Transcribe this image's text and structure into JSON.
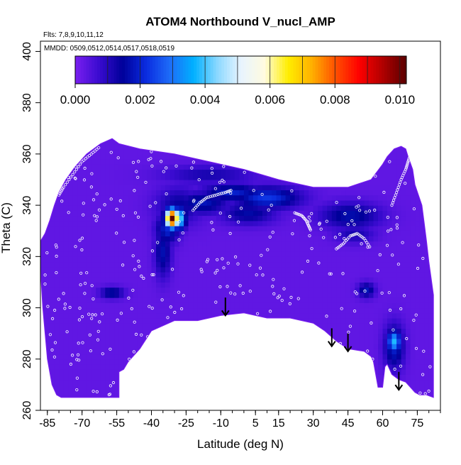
{
  "chart_data": {
    "type": "heatmap",
    "title": "ATOM4 Northbound V_nucl_AMP",
    "flights_note": "Flts: 7,8,9,10,11,12",
    "dates_note": "MMDD: 0509,0512,0514,0517,0518,0519",
    "xlabel": "Latitude (deg N)",
    "ylabel": "Theta (C)",
    "xlim": [
      -88,
      85
    ],
    "ylim": [
      260,
      404
    ],
    "x_ticks": [
      -85,
      -70,
      -55,
      -40,
      -25,
      -10,
      5,
      15,
      30,
      45,
      60,
      75
    ],
    "x_tick_labels": [
      "-85",
      "-70",
      "-55",
      "-40",
      "-25",
      "-10",
      "5",
      "15",
      "30",
      "45",
      "60",
      "75"
    ],
    "y_ticks": [
      260,
      280,
      300,
      320,
      340,
      360,
      380,
      400
    ],
    "y_tick_labels": [
      "260",
      "280",
      "300",
      "320",
      "340",
      "360",
      "380",
      "400"
    ],
    "colorbar": {
      "min": 0.0,
      "max": 0.0102,
      "tick_values": [
        0.0,
        0.002,
        0.004,
        0.006,
        0.008,
        0.01
      ],
      "tick_labels": [
        "0.000",
        "0.002",
        "0.004",
        "0.006",
        "0.008",
        "0.010"
      ],
      "segment_boundaries": [
        0.0,
        0.001,
        0.002,
        0.003,
        0.004,
        0.005,
        0.006,
        0.007,
        0.008,
        0.009,
        0.01
      ],
      "colors": [
        "#7a1ff0",
        "#3a0bd0",
        "#00009a",
        "#0a2ce0",
        "#1e6cf8",
        "#00b0ff",
        "#8ad8ff",
        "#e8f4ff",
        "#fffbe0",
        "#ffee00",
        "#ffb000",
        "#ff5000",
        "#ff0000",
        "#b00000",
        "#5a0000"
      ]
    },
    "background_value": 0.0003,
    "outline": [
      [
        -88,
        326
      ],
      [
        -86,
        329
      ],
      [
        -84,
        334
      ],
      [
        -82,
        340
      ],
      [
        -80,
        345
      ],
      [
        -77,
        350
      ],
      [
        -73,
        355
      ],
      [
        -68,
        360
      ],
      [
        -62,
        364
      ],
      [
        -57,
        366
      ],
      [
        -54,
        364
      ],
      [
        -45,
        362
      ],
      [
        -30,
        360
      ],
      [
        -15,
        357
      ],
      [
        0,
        354
      ],
      [
        15,
        350
      ],
      [
        30,
        347
      ],
      [
        45,
        347
      ],
      [
        55,
        350
      ],
      [
        60,
        356
      ],
      [
        62,
        359
      ],
      [
        65,
        362
      ],
      [
        68,
        363
      ],
      [
        70,
        362
      ],
      [
        71,
        359
      ],
      [
        73,
        354
      ],
      [
        74,
        348
      ],
      [
        77,
        340
      ],
      [
        78,
        333
      ],
      [
        79,
        326
      ],
      [
        80,
        318
      ],
      [
        82,
        305
      ],
      [
        82,
        280
      ],
      [
        82,
        265
      ],
      [
        79,
        266
      ],
      [
        76,
        266
      ],
      [
        74,
        267
      ],
      [
        70,
        271
      ],
      [
        67,
        272
      ],
      [
        64,
        274
      ],
      [
        62,
        278
      ],
      [
        61,
        277
      ],
      [
        60,
        269
      ],
      [
        58,
        269
      ],
      [
        56,
        279
      ],
      [
        55,
        281
      ],
      [
        52,
        283
      ],
      [
        45,
        284
      ],
      [
        40,
        287
      ],
      [
        35,
        291
      ],
      [
        30,
        294
      ],
      [
        20,
        296
      ],
      [
        10,
        296
      ],
      [
        0,
        298
      ],
      [
        -10,
        297
      ],
      [
        -20,
        295
      ],
      [
        -30,
        295
      ],
      [
        -40,
        291
      ],
      [
        -45,
        284
      ],
      [
        -50,
        279
      ],
      [
        -52,
        276
      ],
      [
        -54,
        275
      ],
      [
        -54,
        265
      ],
      [
        -79,
        265
      ],
      [
        -81,
        266
      ],
      [
        -83,
        270
      ],
      [
        -85,
        280
      ],
      [
        -87,
        300
      ],
      [
        -88,
        315
      ]
    ],
    "features": [
      {
        "lat": -31,
        "theta": 335,
        "dlat": 2.0,
        "dtheta": 2.5,
        "value": 0.0102
      },
      {
        "lat": -28,
        "theta": 335,
        "dlat": 2.0,
        "dtheta": 3.0,
        "value": 0.0044
      },
      {
        "lat": -33,
        "theta": 331,
        "dlat": 3.5,
        "dtheta": 4.0,
        "value": 0.0021
      },
      {
        "lat": -35,
        "theta": 322,
        "dlat": 2.5,
        "dtheta": 7.0,
        "value": 0.0017
      },
      {
        "lat": -28,
        "theta": 340,
        "dlat": 7.0,
        "dtheta": 5.0,
        "value": 0.0014
      },
      {
        "lat": -18,
        "theta": 341,
        "dlat": 8.0,
        "dtheta": 3.0,
        "value": 0.0018
      },
      {
        "lat": -5,
        "theta": 345,
        "dlat": 9.0,
        "dtheta": 2.5,
        "value": 0.002
      },
      {
        "lat": 10,
        "theta": 343,
        "dlat": 10.0,
        "dtheta": 3.0,
        "value": 0.0023
      },
      {
        "lat": 2,
        "theta": 337,
        "dlat": 8.0,
        "dtheta": 3.0,
        "value": 0.0016
      },
      {
        "lat": -15,
        "theta": 352,
        "dlat": 14.0,
        "dtheta": 2.5,
        "value": 0.0012
      },
      {
        "lat": 46,
        "theta": 336,
        "dlat": 9.0,
        "dtheta": 3.5,
        "value": 0.0017
      },
      {
        "lat": 48,
        "theta": 329,
        "dlat": 6.0,
        "dtheta": 2.5,
        "value": 0.0012
      },
      {
        "lat": 53,
        "theta": 307,
        "dlat": 2.5,
        "dtheta": 2.0,
        "value": 0.0018
      },
      {
        "lat": 65,
        "theta": 287,
        "dlat": 2.0,
        "dtheta": 3.0,
        "value": 0.0038
      },
      {
        "lat": 65,
        "theta": 285,
        "dlat": 3.0,
        "dtheta": 6.0,
        "value": 0.002
      },
      {
        "lat": -57,
        "theta": 306,
        "dlat": 3.5,
        "dtheta": 1.5,
        "value": 0.0018
      }
    ],
    "arrows": [
      {
        "lat": -8,
        "theta_top": 304,
        "theta_tip": 297
      },
      {
        "lat": 38,
        "theta_top": 292,
        "theta_tip": 285
      },
      {
        "lat": 45,
        "theta_top": 290,
        "theta_tip": 283
      },
      {
        "lat": 67,
        "theta_top": 275,
        "theta_tip": 268
      }
    ],
    "sample_tracks": [
      {
        "name": "ascent-south",
        "points": [
          [
            -80,
            344
          ],
          [
            -78,
            347
          ],
          [
            -74,
            352
          ],
          [
            -70,
            357
          ],
          [
            -66,
            360
          ],
          [
            -62,
            363
          ]
        ]
      },
      {
        "name": "hump-center",
        "points": [
          [
            -22,
            338
          ],
          [
            -19,
            341
          ],
          [
            -16,
            343
          ],
          [
            -12,
            344
          ],
          [
            -8,
            345
          ],
          [
            -5,
            346
          ]
        ]
      },
      {
        "name": "mid-lat-north",
        "points": [
          [
            22,
            337
          ],
          [
            25,
            336
          ],
          [
            27,
            334
          ],
          [
            28,
            332
          ],
          [
            29,
            330
          ]
        ]
      },
      {
        "name": "subtropic-north",
        "points": [
          [
            40,
            323
          ],
          [
            43,
            325
          ],
          [
            46,
            328
          ],
          [
            49,
            329
          ],
          [
            52,
            327
          ],
          [
            55,
            323
          ]
        ]
      },
      {
        "name": "arctic-ascent",
        "points": [
          [
            64,
            340
          ],
          [
            66,
            345
          ],
          [
            68,
            350
          ],
          [
            70,
            354
          ],
          [
            71,
            357
          ],
          [
            72,
            360
          ]
        ]
      }
    ]
  }
}
